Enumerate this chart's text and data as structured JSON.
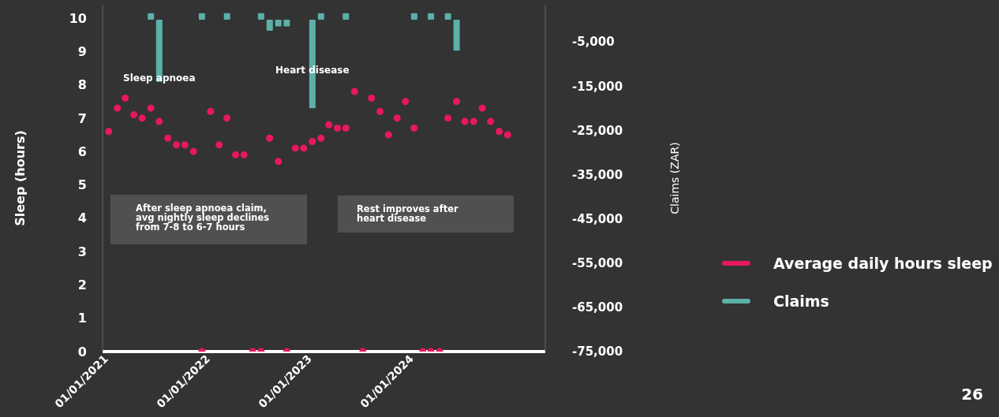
{
  "chart_data": {
    "type": "scatter",
    "ylabel": "Sleep (hours)",
    "y2label": "Claims (ZAR)",
    "x": [
      "2021-01",
      "2021-02",
      "2021-03",
      "2021-04",
      "2021-05",
      "2021-06",
      "2021-07",
      "2021-08",
      "2021-09",
      "2021-10",
      "2021-11",
      "2021-12",
      "2022-01",
      "2022-02",
      "2022-03",
      "2022-04",
      "2022-05",
      "2022-06",
      "2022-07",
      "2022-08",
      "2022-09",
      "2022-10",
      "2022-11",
      "2022-12",
      "2023-01",
      "2023-02",
      "2023-03",
      "2023-04",
      "2023-05",
      "2023-06",
      "2023-07",
      "2023-08",
      "2023-09",
      "2023-10",
      "2023-11",
      "2023-12",
      "2024-01",
      "2024-02",
      "2024-03",
      "2024-04",
      "2024-05",
      "2024-06",
      "2024-07",
      "2024-08",
      "2024-09",
      "2024-10",
      "2024-11",
      "2024-12"
    ],
    "series": [
      {
        "name": "Average daily hours sleep",
        "color": "#e8185c",
        "values": [
          6.6,
          7.3,
          7.6,
          7.1,
          7.0,
          7.3,
          6.9,
          6.4,
          6.2,
          6.2,
          6.0,
          0,
          7.2,
          6.2,
          7.0,
          5.9,
          5.9,
          0,
          0,
          6.4,
          5.7,
          0,
          6.1,
          6.1,
          6.3,
          6.4,
          6.8,
          6.7,
          6.7,
          7.8,
          0,
          7.6,
          7.2,
          6.5,
          7.0,
          7.5,
          6.7,
          0,
          0,
          0,
          7.0,
          7.5,
          6.9,
          6.9,
          7.3,
          6.9,
          6.6,
          6.5
        ]
      },
      {
        "name": "Claims",
        "type": "bar",
        "axis": "y2",
        "color": "#5bb0a8",
        "values": [
          null,
          null,
          null,
          null,
          null,
          1500,
          -14000,
          null,
          null,
          null,
          null,
          1500,
          null,
          null,
          1500,
          null,
          null,
          null,
          1500,
          -2500,
          -1500,
          -1500,
          null,
          null,
          -20000,
          1500,
          null,
          null,
          1500,
          null,
          null,
          null,
          null,
          null,
          null,
          null,
          1500,
          null,
          1500,
          null,
          1500,
          -7000,
          null,
          null,
          null,
          null,
          null,
          null
        ]
      }
    ],
    "xlim": [
      "2020-12-10",
      "2025-04-15"
    ],
    "xticks": [
      {
        "value": "2021-01-01",
        "label": "01/01/2021"
      },
      {
        "value": "2022-01-01",
        "label": "01/01/2022"
      },
      {
        "value": "2023-01-01",
        "label": "01/01/2023"
      },
      {
        "value": "2024-01-01",
        "label": "01/01/2024"
      }
    ],
    "ylim": [
      0,
      10.4
    ],
    "yticks": [
      0,
      1,
      2,
      3,
      4,
      5,
      6,
      7,
      8,
      9,
      10
    ],
    "y2lim": [
      -75000,
      3400
    ],
    "y2ticks": [
      {
        "value": -5000,
        "label": "-5,000"
      },
      {
        "value": -15000,
        "label": "-15,000"
      },
      {
        "value": -25000,
        "label": "-25,000"
      },
      {
        "value": -35000,
        "label": "-35,000"
      },
      {
        "value": -45000,
        "label": "-45,000"
      },
      {
        "value": -55000,
        "label": "-55,000"
      },
      {
        "value": -65000,
        "label": "-65,000"
      },
      {
        "value": -75000,
        "label": "-75,000"
      }
    ],
    "annotations": [
      {
        "text": "Sleep apnoea",
        "x": "2021-07",
        "y": 8.2
      },
      {
        "text": "Heart disease",
        "x": "2023-01",
        "y": 8.45
      },
      "After sleep apnoea claim, avg nightly sleep declines from 7-8 to 6-7 hours",
      "Rest improves after heart disease",
      "26"
    ],
    "marker": "circle",
    "legend": "right",
    "grid": false
  }
}
